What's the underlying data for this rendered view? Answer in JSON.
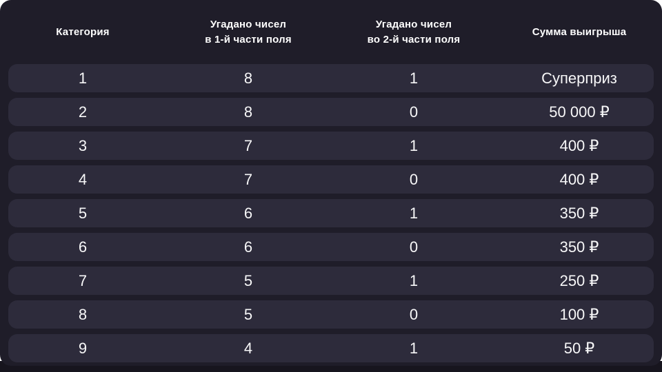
{
  "table": {
    "headers": [
      {
        "line1": "Категория",
        "line2": ""
      },
      {
        "line1": "Угадано чисел",
        "line2": "в 1-й части поля"
      },
      {
        "line1": "Угадано чисел",
        "line2": "во 2-й части поля"
      },
      {
        "line1": "Сумма выигрыша",
        "line2": ""
      }
    ],
    "rows": [
      [
        "1",
        "8",
        "1",
        "Суперприз"
      ],
      [
        "2",
        "8",
        "0",
        "50 000 ₽"
      ],
      [
        "3",
        "7",
        "1",
        "400 ₽"
      ],
      [
        "4",
        "7",
        "0",
        "400 ₽"
      ],
      [
        "5",
        "6",
        "1",
        "350 ₽"
      ],
      [
        "6",
        "6",
        "0",
        "350 ₽"
      ],
      [
        "7",
        "5",
        "1",
        "250 ₽"
      ],
      [
        "8",
        "5",
        "0",
        "100 ₽"
      ],
      [
        "9",
        "4",
        "1",
        "50 ₽"
      ]
    ]
  },
  "colors": {
    "card_background": "#1f1d29",
    "row_background": "#2d2b3b",
    "text": "#ffffff",
    "page_top_background": "#ffffff",
    "page_bottom_background": "#17151e"
  }
}
